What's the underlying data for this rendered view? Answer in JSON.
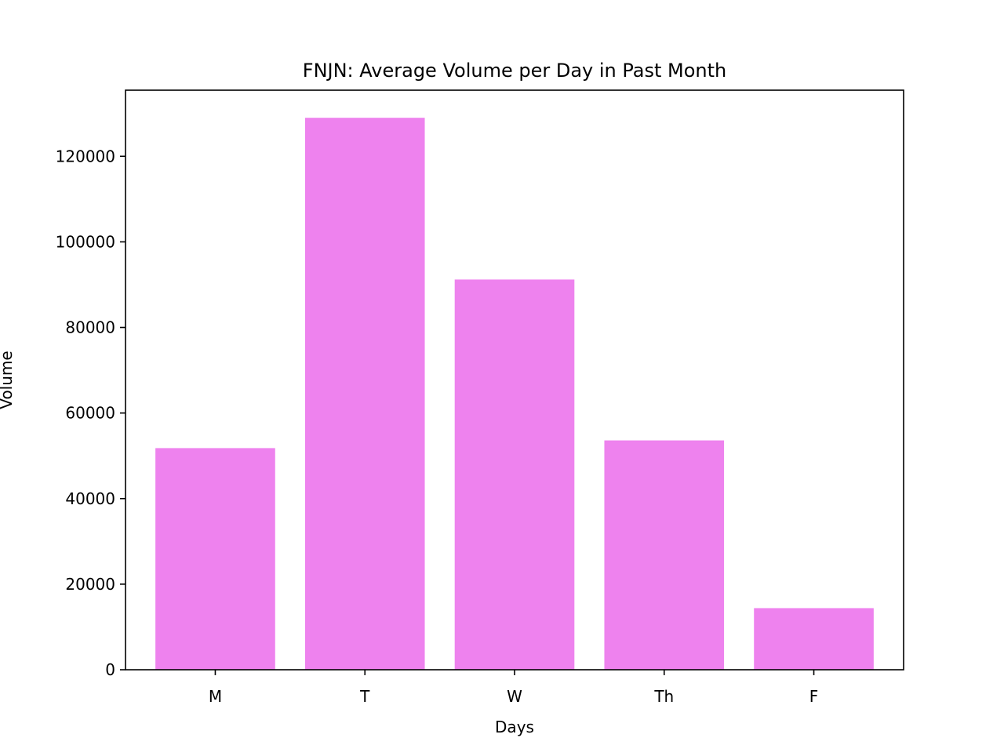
{
  "chart_data": {
    "type": "bar",
    "title": "FNJN: Average Volume per Day in Past Month",
    "xlabel": "Days",
    "ylabel": "Volume",
    "categories": [
      "M",
      "T",
      "W",
      "Th",
      "F"
    ],
    "values": [
      51800,
      129000,
      91200,
      53600,
      14400
    ],
    "ylim": [
      0,
      135450
    ],
    "yticks": [
      0,
      20000,
      40000,
      60000,
      80000,
      100000,
      120000
    ],
    "ytick_labels": [
      "0",
      "20000",
      "40000",
      "60000",
      "80000",
      "100000",
      "120000"
    ],
    "grid": false,
    "legend": "none",
    "bar_color": "#ee82ee"
  }
}
